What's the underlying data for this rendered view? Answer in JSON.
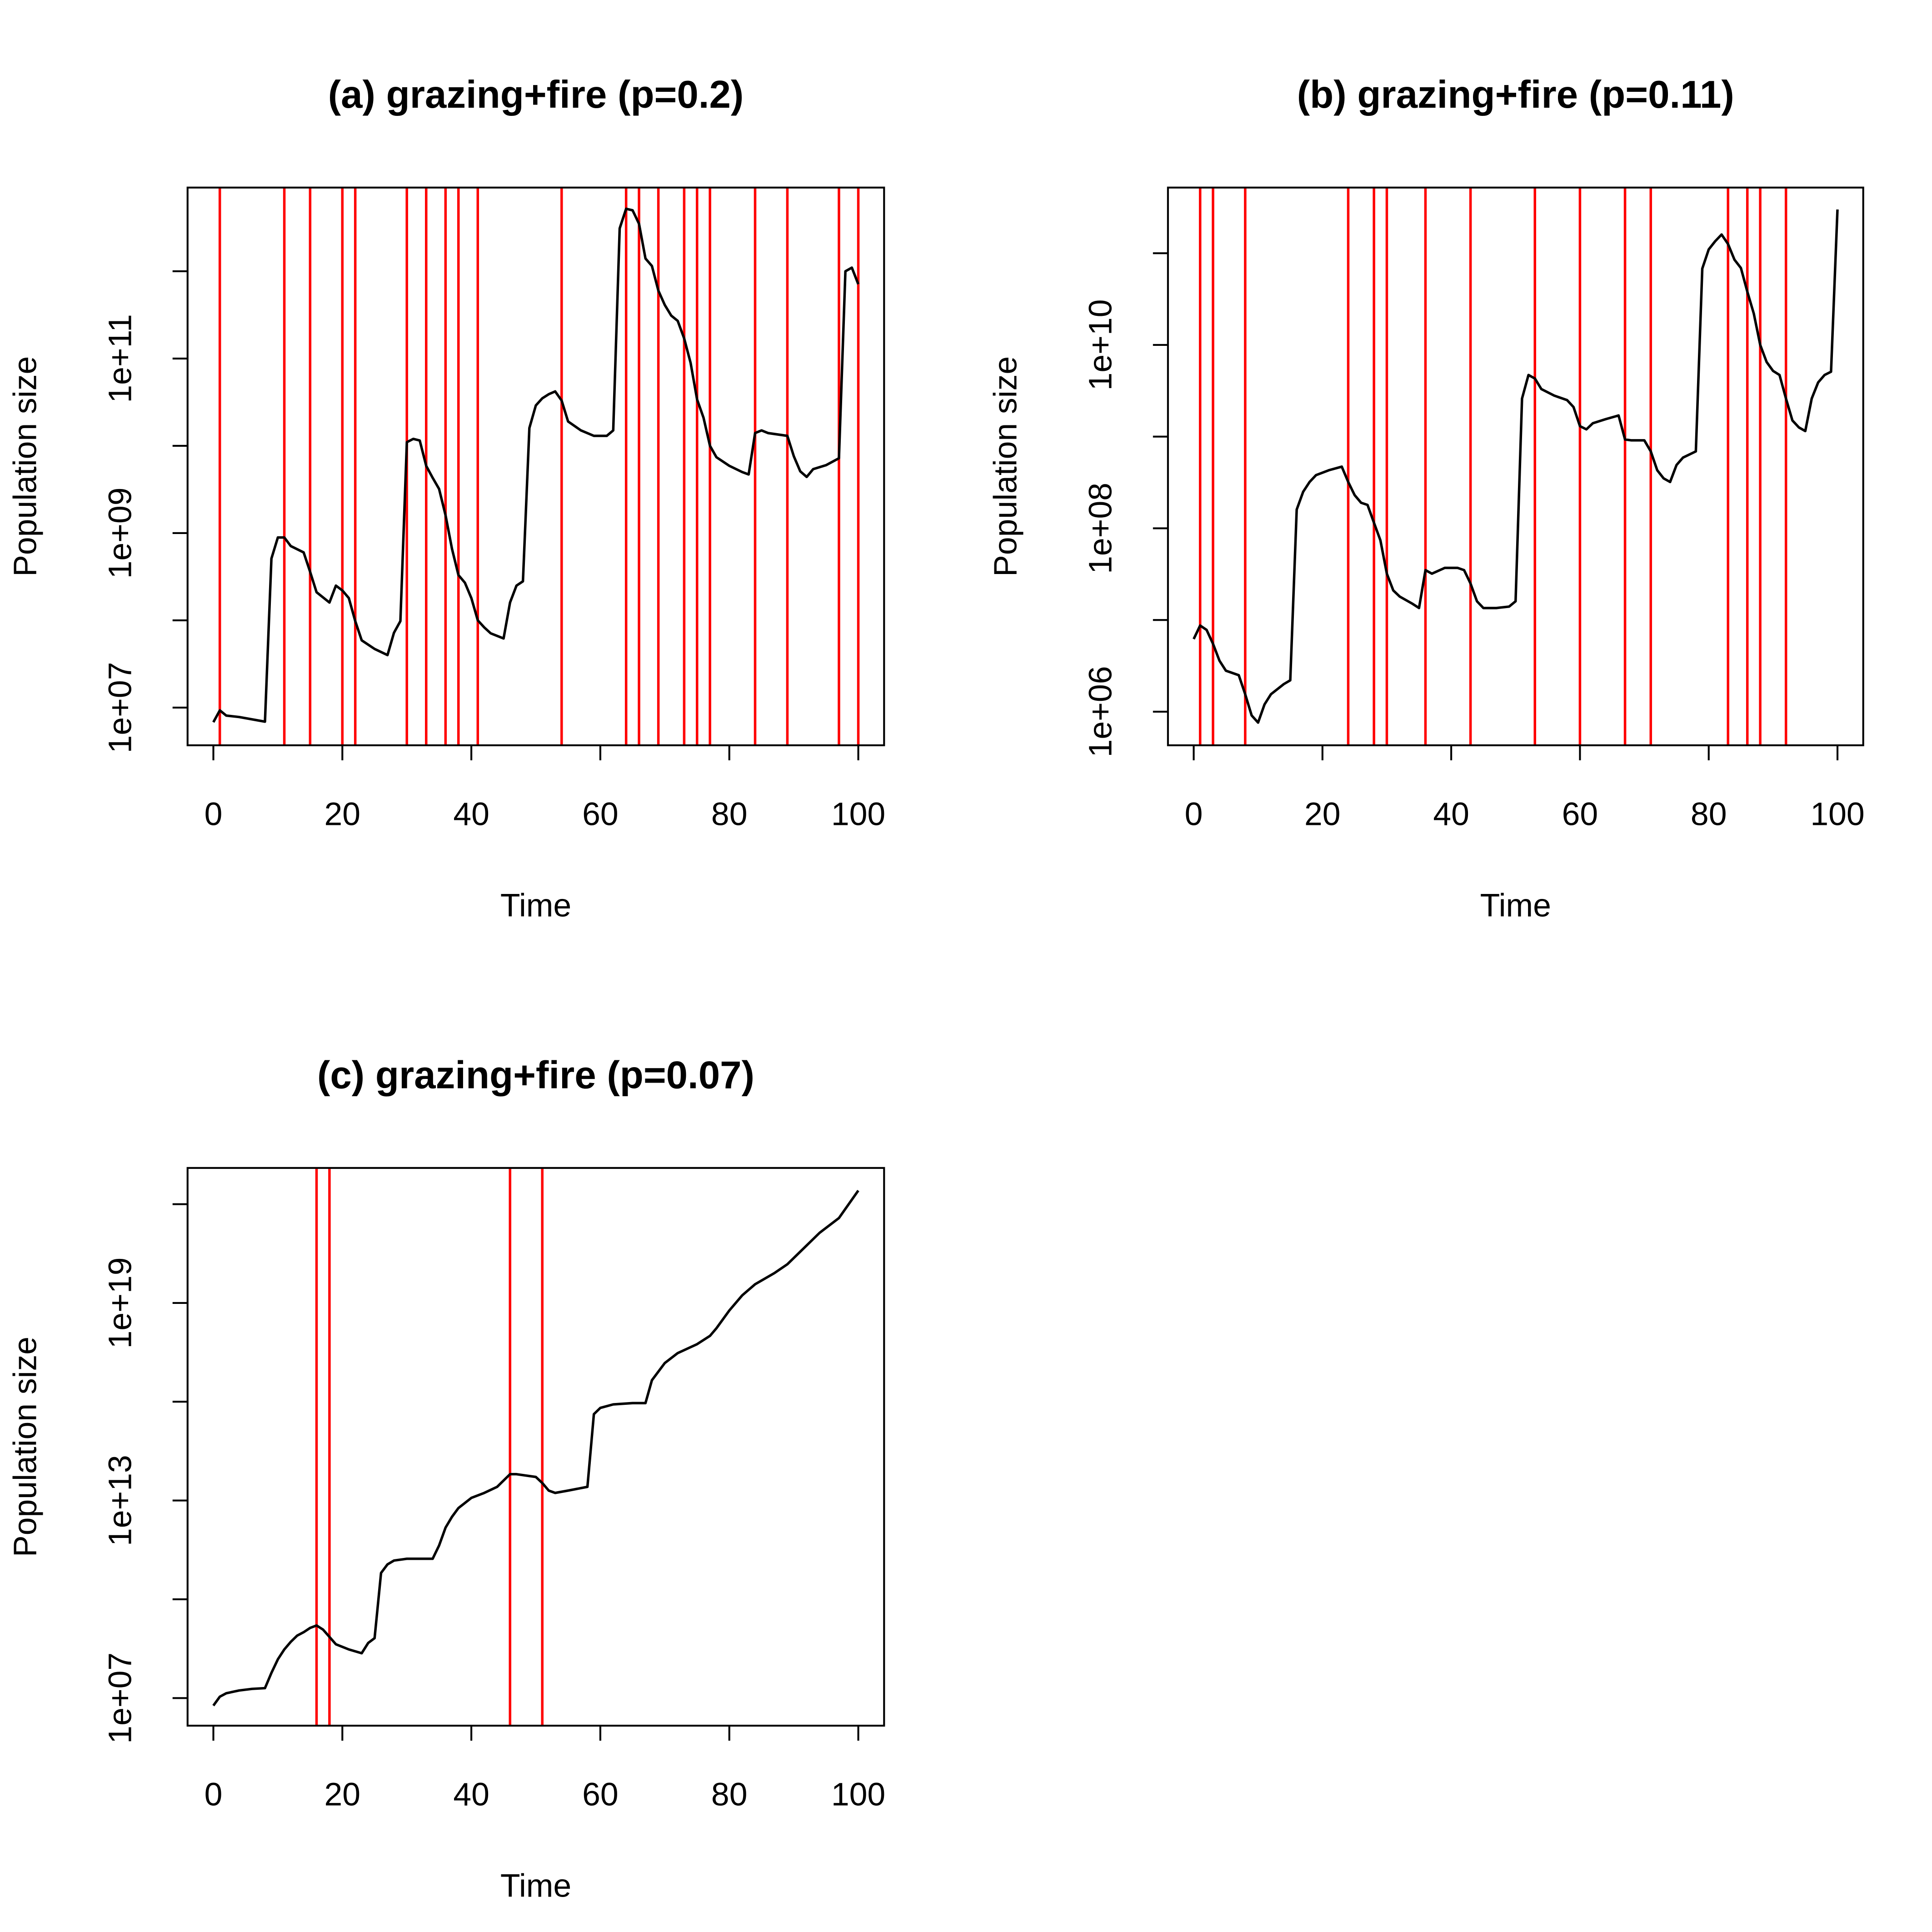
{
  "chart_data": [
    {
      "type": "line",
      "title": "(a) grazing+fire (p=0.2)",
      "xlabel": "Time",
      "ylabel": "Population size",
      "ylog": true,
      "color": "#000000",
      "event_color": "#ff0000",
      "x": [
        0,
        1,
        2,
        4,
        8,
        9,
        10,
        11,
        12,
        14,
        15,
        16,
        18,
        19,
        20,
        21,
        22,
        23,
        25,
        27,
        28,
        29,
        30,
        31,
        32,
        33,
        34,
        35,
        36,
        37,
        38,
        39,
        40,
        41,
        42,
        43,
        45,
        46,
        47,
        48,
        49,
        50,
        51,
        52,
        53,
        54,
        55,
        57,
        59,
        61,
        62,
        63,
        64,
        65,
        66,
        67,
        68,
        69,
        70,
        71,
        72,
        73,
        74,
        75,
        76,
        77,
        78,
        80,
        82,
        83,
        84,
        85,
        86,
        89,
        90,
        91,
        92,
        93,
        95,
        97,
        98,
        99,
        100
      ],
      "values": [
        6800000.0,
        9300000.0,
        8100000.0,
        7800000.0,
        6900000.0,
        510000000.0,
        890000000.0,
        890000000.0,
        710000000.0,
        600000000.0,
        360000000.0,
        210000000.0,
        160000000.0,
        250000000.0,
        220000000.0,
        180000000.0,
        98000000.0,
        59000000.0,
        47000000.0,
        40000000.0,
        72000000.0,
        98000000.0,
        11000000000.0,
        12000000000.0,
        11500000000.0,
        5900000000.0,
        4300000000.0,
        3200000000.0,
        1600000000.0,
        660000000.0,
        330000000.0,
        270000000.0,
        180000000.0,
        100000000.0,
        83000000.0,
        71000000.0,
        62000000.0,
        160000000.0,
        250000000.0,
        280000000.0,
        16000000000.0,
        29000000000.0,
        35000000000.0,
        39000000000.0,
        42000000000.0,
        33000000000.0,
        19000000000.0,
        15000000000.0,
        13000000000.0,
        13000000000.0,
        15000000000.0,
        3100000000000.0,
        5200000000000.0,
        5000000000000.0,
        3500000000000.0,
        1400000000000.0,
        1150000000000.0,
        600000000000.0,
        410000000000.0,
        310000000000.0,
        270000000000.0,
        170000000000.0,
        89000000000.0,
        34000000000.0,
        21000000000.0,
        10000000000.0,
        7400000000.0,
        5900000000.0,
        5000000000.0,
        4700000000.0,
        14000000000.0,
        15000000000.0,
        14000000000.0,
        13000000000.0,
        7600000000.0,
        5100000000.0,
        4400000000.0,
        5400000000.0,
        6000000000.0,
        7200000000.0,
        1000000000000.0,
        1100000000000.0,
        710000000000.0
      ],
      "events": [
        1,
        11,
        15,
        20,
        22,
        30,
        33,
        36,
        38,
        41,
        54,
        64,
        66,
        69,
        73,
        75,
        77,
        84,
        89,
        97,
        100
      ],
      "xlim": [
        -4,
        104
      ],
      "ylim": [
        3700000.0,
        9100000000000.0
      ],
      "xticks": [
        0,
        20,
        40,
        60,
        80,
        100
      ],
      "yticks": [
        {
          "value": 10000000.0,
          "label": "1e+07"
        },
        {
          "value": 100000000.0,
          "label": null
        },
        {
          "value": 1000000000.0,
          "label": "1e+09"
        },
        {
          "value": 10000000000.0,
          "label": null
        },
        {
          "value": 100000000000.0,
          "label": "1e+11"
        },
        {
          "value": 1000000000000.0,
          "label": null
        }
      ]
    },
    {
      "type": "line",
      "title": "(b) grazing+fire (p=0.11)",
      "xlabel": "Time",
      "ylabel": "Population size",
      "ylog": true,
      "color": "#000000",
      "event_color": "#ff0000",
      "x": [
        0,
        1,
        2,
        3,
        4,
        5,
        7,
        8,
        9,
        10,
        11,
        12,
        14,
        15,
        16,
        17,
        18,
        19,
        21,
        23,
        24,
        25,
        26,
        27,
        28,
        29,
        30,
        31,
        32,
        34,
        35,
        36,
        37,
        39,
        41,
        42,
        43,
        44,
        45,
        47,
        49,
        50,
        51,
        52,
        53,
        54,
        56,
        58,
        59,
        60,
        61,
        62,
        64,
        66,
        67,
        68,
        70,
        71,
        72,
        73,
        74,
        75,
        76,
        78,
        79,
        80,
        81,
        82,
        83,
        84,
        85,
        86,
        87,
        88,
        89,
        90,
        91,
        92,
        93,
        94,
        95,
        96,
        97,
        98,
        99,
        100
      ],
      "values": [
        6200000.0,
        8700000.0,
        7800000.0,
        5500000.0,
        3600000.0,
        2800000.0,
        2500000.0,
        1550000.0,
        910000.0,
        760000.0,
        1200000.0,
        1550000.0,
        2000000.0,
        2200000.0,
        160000000.0,
        250000000.0,
        320000000.0,
        380000000.0,
        430000000.0,
        470000000.0,
        320000000.0,
        230000000.0,
        190000000.0,
        180000000.0,
        115000000.0,
        74000000.0,
        32000000.0,
        21000000.0,
        18000000.0,
        15000000.0,
        13500000.0,
        35000000.0,
        32000000.0,
        37000000.0,
        37000000.0,
        35000000.0,
        25000000.0,
        16000000.0,
        13500000.0,
        13500000.0,
        14000000.0,
        16000000.0,
        2600000000.0,
        4700000000.0,
        4300000000.0,
        3300000000.0,
        2800000000.0,
        2500000000.0,
        2100000000.0,
        1300000000.0,
        1200000000.0,
        1400000000.0,
        1550000000.0,
        1700000000.0,
        930000000.0,
        910000000.0,
        910000000.0,
        690000000.0,
        430000000.0,
        350000000.0,
        320000000.0,
        490000000.0,
        590000000.0,
        690000000.0,
        68000000000.0,
        110000000000.0,
        135000000000.0,
        160000000000.0,
        126000000000.0,
        85000000000.0,
        69000000000.0,
        38000000000.0,
        22000000000.0,
        10000000000.0,
        6500000000.0,
        5200000000.0,
        4700000000.0,
        2600000000.0,
        1500000000.0,
        1260000000.0,
        1150000000.0,
        2600000000.0,
        3900000000.0,
        4700000000.0,
        5100000000.0,
        300000000000.0
      ],
      "events": [
        1,
        3,
        8,
        24,
        28,
        30,
        36,
        43,
        53,
        60,
        67,
        71,
        83,
        86,
        88,
        92
      ],
      "xlim": [
        -4,
        104
      ],
      "ylim": [
        430000.0,
        520000000000.0
      ],
      "xticks": [
        0,
        20,
        40,
        60,
        80,
        100
      ],
      "yticks": [
        {
          "value": 1000000.0,
          "label": "1e+06"
        },
        {
          "value": 10000000.0,
          "label": null
        },
        {
          "value": 100000000.0,
          "label": "1e+08"
        },
        {
          "value": 1000000000.0,
          "label": null
        },
        {
          "value": 10000000000.0,
          "label": "1e+10"
        },
        {
          "value": 100000000000.0,
          "label": null
        }
      ]
    },
    {
      "type": "line",
      "title": "(c) grazing+fire (p=0.07)",
      "xlabel": "Time",
      "ylabel": "Population size",
      "ylog": true,
      "color": "#000000",
      "event_color": "#ff0000",
      "x": [
        0,
        1,
        2,
        4,
        6,
        8,
        9,
        10,
        11,
        12,
        13,
        14,
        15,
        16,
        17,
        18,
        19,
        21,
        23,
        24,
        25,
        26,
        27,
        28,
        30,
        34,
        35,
        36,
        37,
        38,
        40,
        42,
        44,
        46,
        47,
        50,
        51,
        52,
        53,
        55,
        58,
        59,
        60,
        62,
        65,
        67,
        68,
        70,
        72,
        75,
        77,
        78,
        80,
        82,
        84,
        87,
        89,
        92,
        94,
        97,
        100
      ],
      "values": [
        5900000.0,
        11000000.0,
        14000000.0,
        17000000.0,
        19000000.0,
        20000000.0,
        58000000.0,
        150000000.0,
        300000000.0,
        510000000.0,
        790000000.0,
        1000000000.0,
        1350000000.0,
        1600000000.0,
        1200000000.0,
        720000000.0,
        430000000.0,
        300000000.0,
        230000000.0,
        470000000.0,
        660000000.0,
        63000000000.0,
        115000000000.0,
        150000000000.0,
        170000000000.0,
        170000000000.0,
        430000000000.0,
        1500000000000.0,
        3200000000000.0,
        5900000000000.0,
        12000000000000.0,
        17000000000000.0,
        26000000000000.0,
        63000000000000.0,
        63000000000000.0,
        52000000000000.0,
        34000000000000.0,
        20000000000000.0,
        17000000000000.0,
        20000000000000.0,
        26000000000000.0,
        4200000000000000.0,
        6500000000000000.0,
        8300000000000000.0,
        9100000000000000.0,
        9100000000000000.0,
        4.5e+16,
        1.5e+17,
        3e+17,
        5.6e+17,
        1e+18,
        1.7e+18,
        5.9e+18,
        1.7e+19,
        3.7e+19,
        8.1e+19,
        1.5e+20,
        5.6e+20,
        1.35e+21,
        3.8e+21,
        2.6e+22
      ],
      "events": [
        16,
        18,
        46,
        51
      ],
      "xlim": [
        -4,
        104
      ],
      "ylim": [
        1450000.0,
        1.26e+23
      ],
      "xticks": [
        0,
        20,
        40,
        60,
        80,
        100
      ],
      "yticks": [
        {
          "value": 10000000.0,
          "label": "1e+07"
        },
        {
          "value": 10000000000.0,
          "label": null
        },
        {
          "value": 10000000000000.0,
          "label": "1e+13"
        },
        {
          "value": 1e+16,
          "label": null
        },
        {
          "value": 1e+19,
          "label": "1e+19"
        },
        {
          "value": 1e+22,
          "label": null
        }
      ]
    }
  ]
}
